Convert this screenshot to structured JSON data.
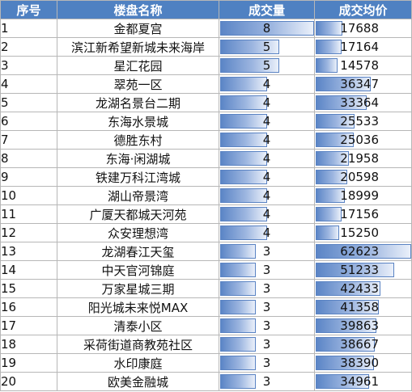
{
  "headers": {
    "index": "序号",
    "name": "楼盘名称",
    "count": "成交量",
    "avg_price": "成交均价"
  },
  "data_bars": {
    "count_max": 8,
    "avg_price_max": 62623,
    "bar_color": "#5b85c6"
  },
  "rows": [
    {
      "index": "1",
      "name": "金都夏宫",
      "count": "8",
      "count_value": 8,
      "avg_price": "17688",
      "avg_value": 17688
    },
    {
      "index": "2",
      "name": "滨江新希望新城未来海岸",
      "count": "5",
      "count_value": 5,
      "avg_price": "17164",
      "avg_value": 17164
    },
    {
      "index": "3",
      "name": "星汇花园",
      "count": "5",
      "count_value": 5,
      "avg_price": "14578",
      "avg_value": 14578
    },
    {
      "index": "4",
      "name": "翠苑一区",
      "count": "4",
      "count_value": 4,
      "avg_price": "36347",
      "avg_value": 36347
    },
    {
      "index": "5",
      "name": "龙湖名景台二期",
      "count": "4",
      "count_value": 4,
      "avg_price": "33364",
      "avg_value": 33364
    },
    {
      "index": "6",
      "name": "东海水景城",
      "count": "4",
      "count_value": 4,
      "avg_price": "25533",
      "avg_value": 25533
    },
    {
      "index": "7",
      "name": "德胜东村",
      "count": "4",
      "count_value": 4,
      "avg_price": "25036",
      "avg_value": 25036
    },
    {
      "index": "8",
      "name": "东海·闲湖城",
      "count": "4",
      "count_value": 4,
      "avg_price": "21958",
      "avg_value": 21958
    },
    {
      "index": "9",
      "name": "铁建万科江湾城",
      "count": "4",
      "count_value": 4,
      "avg_price": "20598",
      "avg_value": 20598
    },
    {
      "index": "10",
      "name": "湖山帝景湾",
      "count": "4",
      "count_value": 4,
      "avg_price": "18999",
      "avg_value": 18999
    },
    {
      "index": "11",
      "name": "广厦天都城天河苑",
      "count": "4",
      "count_value": 4,
      "avg_price": "17156",
      "avg_value": 17156
    },
    {
      "index": "12",
      "name": "众安理想湾",
      "count": "4",
      "count_value": 4,
      "avg_price": "15250",
      "avg_value": 15250
    },
    {
      "index": "13",
      "name": "龙湖春江天玺",
      "count": "3",
      "count_value": 3,
      "avg_price": "62623",
      "avg_value": 62623
    },
    {
      "index": "14",
      "name": "中天官河锦庭",
      "count": "3",
      "count_value": 3,
      "avg_price": "51233",
      "avg_value": 51233
    },
    {
      "index": "15",
      "name": "万家星城三期",
      "count": "3",
      "count_value": 3,
      "avg_price": "42433",
      "avg_value": 42433
    },
    {
      "index": "16",
      "name": "阳光城未来悦MAX",
      "count": "3",
      "count_value": 3,
      "avg_price": "41358",
      "avg_value": 41358
    },
    {
      "index": "17",
      "name": "清泰小区",
      "count": "3",
      "count_value": 3,
      "avg_price": "39863",
      "avg_value": 39863
    },
    {
      "index": "18",
      "name": "采荷街道商教苑社区",
      "count": "3",
      "count_value": 3,
      "avg_price": "38667",
      "avg_value": 38667
    },
    {
      "index": "19",
      "name": "水印康庭",
      "count": "3",
      "count_value": 3,
      "avg_price": "38390",
      "avg_value": 38390
    },
    {
      "index": "20",
      "name": "欧美金融城",
      "count": "3",
      "count_value": 3,
      "avg_price": "34961",
      "avg_value": 34961
    }
  ]
}
